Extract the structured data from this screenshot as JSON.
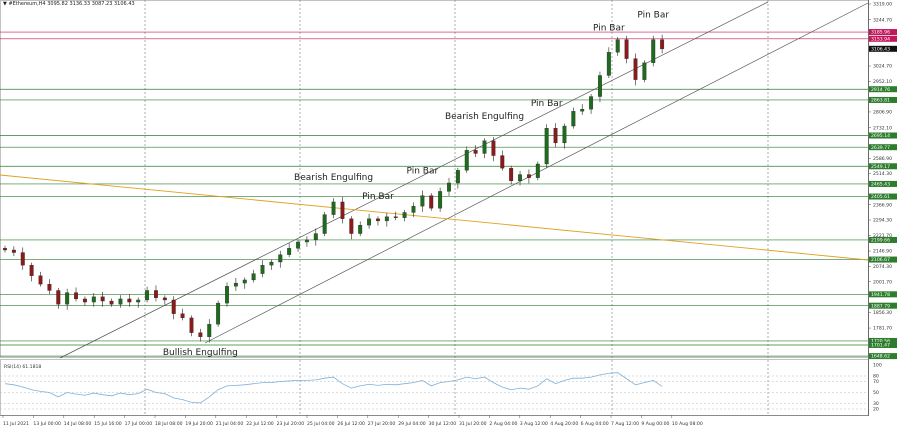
{
  "header": {
    "symbol": "#Ethereum,H4",
    "values": "3095.82 3136.33 3087.23 3106.43"
  },
  "colors": {
    "bull": "#1e6b1e",
    "bear": "#8b1a1a",
    "support": "#2e7d2e",
    "resistance": "#c2185b",
    "trend_orange": "#e0a020",
    "rsi_line": "#7fb0d8",
    "channel": "#555555"
  },
  "chart_data": [
    {
      "type": "candlestick",
      "title": "#Ethereum,H4",
      "ylim": [
        1600,
        3319
      ],
      "grid": false,
      "y_ticks": [
        "3319.00",
        "3244.70",
        "3024.70",
        "2952.10",
        "2806.90",
        "2732.10",
        "2586.90",
        "2514.30",
        "2366.90",
        "2294.30",
        "2221.70",
        "2146.90",
        "2074.30",
        "2001.70",
        "1856.30",
        "1781.70"
      ],
      "x_ticks": [
        "11 Jul 2021",
        "13 Jul 00:00",
        "14 Jul 08:00",
        "15 Jul 16:00",
        "17 Jul 00:00",
        "18 Jul 08:00",
        "19 Jul 20:00",
        "21 Jul 04:00",
        "22 Jul 12:00",
        "23 Jul 20:00",
        "25 Jul 04:00",
        "26 Jul 12:00",
        "27 Jul 20:00",
        "29 Jul 04:00",
        "30 Jul 12:00",
        "31 Jul 20:00",
        "2 Aug 04:00",
        "3 Aug 12:00",
        "4 Aug 20:00",
        "6 Aug 04:00",
        "7 Aug 12:00",
        "9 Aug 00:00",
        "10 Aug 08:00"
      ],
      "closes": [
        2152,
        2140,
        2080,
        2030,
        1990,
        1960,
        1895,
        1950,
        1920,
        1905,
        1930,
        1910,
        1895,
        1920,
        1905,
        1915,
        1960,
        1925,
        1915,
        1850,
        1830,
        1760,
        1740,
        1800,
        1900,
        1980,
        1995,
        2010,
        2040,
        2080,
        2095,
        2130,
        2160,
        2190,
        2200,
        2230,
        2320,
        2380,
        2300,
        2230,
        2270,
        2300,
        2290,
        2310,
        2305,
        2330,
        2360,
        2410,
        2350,
        2430,
        2470,
        2530,
        2625,
        2610,
        2670,
        2600,
        2540,
        2480,
        2510,
        2495,
        2560,
        2730,
        2660,
        2740,
        2810,
        2820,
        2880,
        2980,
        3090,
        3150,
        3060,
        2960,
        3040,
        3150,
        3106
      ],
      "support_levels": [
        "2914.76",
        "2863.81",
        "2695.14",
        "2639.77",
        "2549.17",
        "2465.43",
        "2405.61",
        "2199.66",
        "2106.67",
        "1941.78",
        "1887.79",
        "1720.56",
        "1701.47",
        "1648.62"
      ],
      "resistance_levels": [
        "3185.96",
        "3153.94"
      ],
      "current_price": "3106.43",
      "annotations": [
        {
          "text": "Bullish Engulfing",
          "at": 22
        },
        {
          "text": "Bearish Engulfing",
          "at": 37
        },
        {
          "text": "Pin Bar",
          "at": 42
        },
        {
          "text": "Pin Bar",
          "at": 47
        },
        {
          "text": "Bearish Engulfing",
          "at": 54
        },
        {
          "text": "Pin Bar",
          "at": 61
        },
        {
          "text": "Pin Bar",
          "at": 68
        },
        {
          "text": "Pin Bar",
          "at": 73
        }
      ]
    },
    {
      "type": "line",
      "title": "RSI(14) 61.1818",
      "ylim": [
        0,
        100
      ],
      "levels": [
        "100",
        "80",
        "70",
        "50",
        "30",
        "20"
      ],
      "values": [
        66,
        64,
        60,
        55,
        52,
        50,
        42,
        50,
        47,
        45,
        49,
        46,
        44,
        49,
        46,
        48,
        56,
        50,
        48,
        40,
        37,
        32,
        31,
        42,
        55,
        62,
        63,
        64,
        66,
        68,
        68,
        70,
        71,
        72,
        72,
        73,
        76,
        78,
        66,
        58,
        62,
        65,
        63,
        65,
        64,
        66,
        68,
        72,
        62,
        68,
        70,
        73,
        78,
        75,
        78,
        68,
        60,
        55,
        58,
        56,
        62,
        75,
        66,
        72,
        76,
        76,
        78,
        82,
        85,
        86,
        75,
        64,
        68,
        72,
        61
      ]
    }
  ]
}
